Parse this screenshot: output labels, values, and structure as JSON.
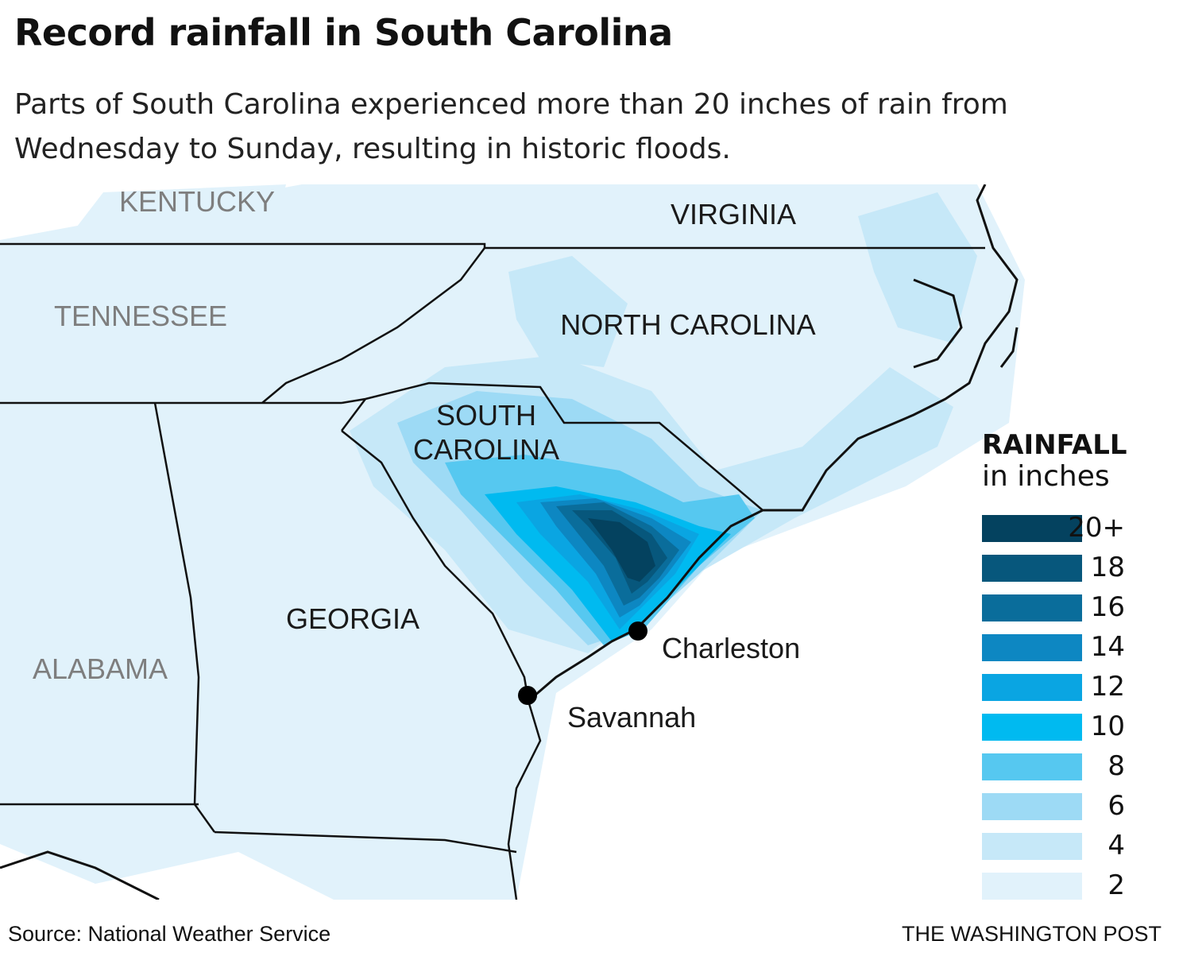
{
  "title": "Record rainfall in South Carolina",
  "subtitle_lines": [
    "Parts of South Carolina experienced more than 20 inches of rain from",
    "Wednesday to Sunday, resulting in historic floods."
  ],
  "map": {
    "states": {
      "kentucky": "KENTUCKY",
      "virginia": "VIRGINIA",
      "tennessee": "TENNESSEE",
      "north_carolina": "NORTH CAROLINA",
      "south_carolina": [
        "SOUTH",
        "CAROLINA"
      ],
      "georgia": "GEORGIA",
      "alabama": "ALABAMA"
    },
    "cities": {
      "charleston": "Charleston",
      "savannah": "Savannah"
    },
    "colors": {
      "background_rain": "#dbf0fb",
      "state_outline": "#111111"
    }
  },
  "legend": {
    "title": "RAINFALL",
    "subtitle": "in inches",
    "items": [
      {
        "label": "20+",
        "color": "#04425f"
      },
      {
        "label": "18",
        "color": "#07577c"
      },
      {
        "label": "16",
        "color": "#0a6d9b"
      },
      {
        "label": "14",
        "color": "#0d87c2"
      },
      {
        "label": "12",
        "color": "#0aa5e2"
      },
      {
        "label": "10",
        "color": "#00baf0"
      },
      {
        "label": "8",
        "color": "#56c8f0"
      },
      {
        "label": "6",
        "color": "#9ddaf5"
      },
      {
        "label": "4",
        "color": "#c6e8f8"
      },
      {
        "label": "2",
        "color": "#e1f2fb"
      }
    ]
  },
  "source": "Source: National Weather Service",
  "credit": "THE WASHINGTON POST"
}
